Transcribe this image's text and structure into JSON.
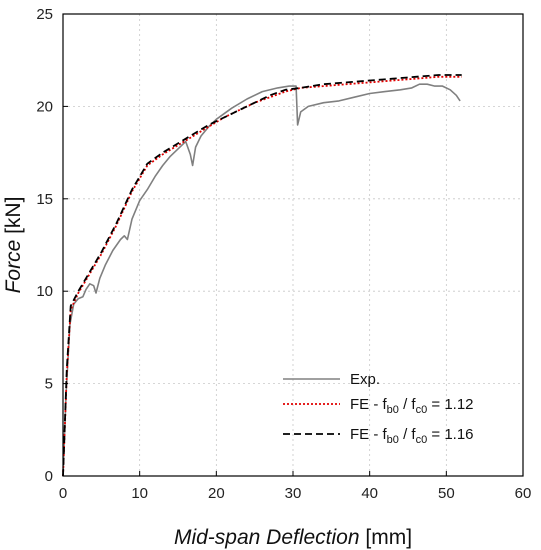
{
  "chart_data": {
    "type": "line",
    "xlabel_italic": "Mid-span Deflection",
    "xlabel_unit": " [mm]",
    "ylabel_italic": "Force",
    "ylabel_unit": " [kN]",
    "xlim": [
      0,
      60
    ],
    "ylim": [
      0,
      25
    ],
    "xticks": [
      0,
      10,
      20,
      30,
      40,
      50,
      60
    ],
    "yticks": [
      0,
      5,
      10,
      15,
      20,
      25
    ],
    "xtick_labels": [
      "0",
      "10",
      "20",
      "30",
      "40",
      "50",
      "60"
    ],
    "ytick_labels": [
      "0",
      "5",
      "10",
      "15",
      "20",
      "25"
    ],
    "grid": true,
    "legend_position": "bottom-right",
    "series": [
      {
        "name": "Exp.",
        "legend_parts": [
          "Exp."
        ],
        "color": "#808080",
        "style": "solid",
        "x": [
          0,
          0.4,
          0.9,
          1.4,
          2.0,
          2.6,
          3.0,
          3.5,
          4.0,
          4.3,
          4.8,
          5.5,
          6.5,
          7.5,
          8.0,
          8.4,
          9.0,
          10.0,
          11.0,
          12.0,
          13.0,
          14.0,
          15.0,
          16.0,
          16.6,
          16.9,
          17.3,
          18.0,
          19.0,
          20.0,
          22.0,
          24.0,
          26.0,
          28.0,
          29.5,
          30.4,
          30.6,
          31.0,
          32.0,
          34.0,
          36.0,
          38.0,
          40.0,
          42.0,
          44.0,
          45.5,
          46.5,
          47.5,
          48.5,
          49.5,
          50.5,
          51.3,
          51.8
        ],
        "y": [
          0,
          4.5,
          8.2,
          9.3,
          9.6,
          9.7,
          10.1,
          10.4,
          10.3,
          9.9,
          10.7,
          11.4,
          12.2,
          12.8,
          13.0,
          12.8,
          13.9,
          14.9,
          15.5,
          16.2,
          16.8,
          17.3,
          17.7,
          18.1,
          17.4,
          16.8,
          17.8,
          18.4,
          18.9,
          19.3,
          19.9,
          20.4,
          20.8,
          21.0,
          21.1,
          21.1,
          19.0,
          19.7,
          20.0,
          20.2,
          20.3,
          20.5,
          20.7,
          20.8,
          20.9,
          21.0,
          21.2,
          21.2,
          21.1,
          21.1,
          20.9,
          20.6,
          20.3
        ],
        "legend_key": "exp-line"
      },
      {
        "name": "FE - fb0 / fc0 = 1.12",
        "legend_parts": [
          "FE - f",
          "b0",
          " / f",
          "c0",
          " = 1.12"
        ],
        "color": "#e00000",
        "style": "dotted",
        "x": [
          0,
          0.5,
          1.0,
          2.0,
          3.0,
          5.0,
          7.0,
          9.0,
          11.0,
          13.0,
          15.0,
          17.0,
          19.0,
          21.0,
          23.0,
          25.0,
          27.0,
          29.0,
          31.0,
          34.0,
          37.0,
          40.0,
          43.0,
          46.0,
          49.0,
          52.0
        ],
        "y": [
          0,
          5.5,
          9.0,
          9.9,
          10.6,
          12.0,
          13.6,
          15.4,
          16.8,
          17.4,
          17.9,
          18.4,
          18.9,
          19.4,
          19.8,
          20.2,
          20.5,
          20.8,
          21.0,
          21.1,
          21.2,
          21.3,
          21.4,
          21.5,
          21.6,
          21.6
        ],
        "legend_key": "fe112-line"
      },
      {
        "name": "FE - fb0 / fc0 = 1.16",
        "legend_parts": [
          "FE - f",
          "b0",
          " / f",
          "c0",
          " = 1.16"
        ],
        "color": "#000000",
        "style": "dashed",
        "x": [
          0,
          0.5,
          1.0,
          2.0,
          3.0,
          5.0,
          7.0,
          9.0,
          11.0,
          13.0,
          15.0,
          17.0,
          19.0,
          21.0,
          23.0,
          25.0,
          27.0,
          29.0,
          31.0,
          34.0,
          37.0,
          40.0,
          43.0,
          46.0,
          49.0,
          52.0
        ],
        "y": [
          0,
          5.8,
          9.2,
          10.0,
          10.7,
          12.1,
          13.7,
          15.5,
          16.9,
          17.5,
          18.0,
          18.5,
          19.0,
          19.4,
          19.8,
          20.2,
          20.6,
          20.9,
          21.0,
          21.2,
          21.3,
          21.4,
          21.5,
          21.6,
          21.7,
          21.7
        ],
        "legend_key": "fe116-line"
      }
    ]
  }
}
